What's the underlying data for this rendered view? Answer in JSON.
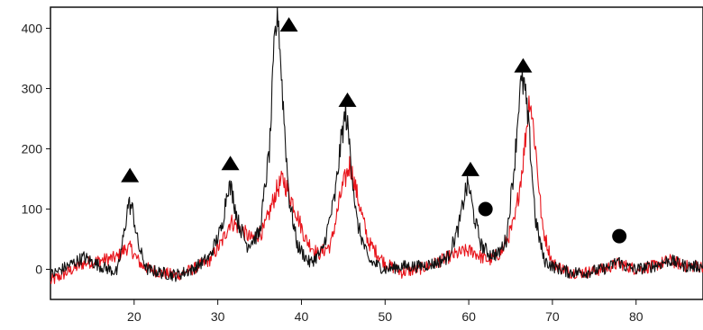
{
  "chart_data": {
    "type": "line",
    "title": "",
    "xlabel": "",
    "ylabel": "",
    "xlim": [
      10,
      88
    ],
    "ylim": [
      -50,
      435
    ],
    "x_ticks": [
      20,
      30,
      40,
      50,
      60,
      70,
      80
    ],
    "y_ticks": [
      0,
      100,
      200,
      300,
      400
    ],
    "grid": false,
    "legend": "none",
    "series": [
      {
        "color": "#e8141b",
        "x": [
          10,
          12,
          14,
          16,
          18,
          19,
          19.6,
          20.2,
          21,
          23,
          25,
          27,
          29,
          30.5,
          31.5,
          32.5,
          34,
          35.5,
          37,
          37.8,
          39,
          40.5,
          42,
          43.5,
          44.8,
          45.8,
          46.8,
          48,
          50,
          52,
          54,
          56,
          57.5,
          58.5,
          59.5,
          60.5,
          61.5,
          62.5,
          64,
          65.5,
          66.5,
          67.3,
          68,
          68.8,
          70,
          72,
          74,
          76,
          77,
          78,
          79,
          80,
          82,
          84,
          86,
          88
        ],
        "y": [
          -20,
          -5,
          10,
          15,
          20,
          35,
          35,
          20,
          5,
          -5,
          -10,
          0,
          15,
          45,
          80,
          70,
          50,
          65,
          130,
          150,
          110,
          50,
          25,
          40,
          130,
          175,
          115,
          45,
          10,
          -5,
          0,
          10,
          20,
          25,
          30,
          30,
          20,
          15,
          30,
          80,
          180,
          290,
          200,
          70,
          10,
          -5,
          -5,
          0,
          5,
          10,
          5,
          0,
          5,
          15,
          5,
          5
        ]
      },
      {
        "color": "#111111",
        "x": [
          10,
          12,
          14,
          16,
          18,
          18.8,
          19.3,
          19.8,
          20.5,
          21.5,
          23,
          25,
          27,
          29,
          30.5,
          31.2,
          31.7,
          32.4,
          33.5,
          35,
          36.2,
          36.8,
          37.2,
          37.7,
          38.5,
          39.5,
          41,
          42.5,
          44,
          44.8,
          45.3,
          45.8,
          46.6,
          48,
          50,
          52,
          54,
          56,
          57.5,
          58.8,
          59.6,
          60,
          60.6,
          61.5,
          62.5,
          63.5,
          64.5,
          65.5,
          66.1,
          66.6,
          67.2,
          68,
          69,
          70,
          72,
          74,
          76,
          77,
          77.8,
          78.6,
          80,
          82,
          84,
          86,
          88
        ],
        "y": [
          -10,
          5,
          20,
          5,
          -5,
          60,
          110,
          100,
          40,
          0,
          -5,
          -10,
          0,
          20,
          70,
          140,
          130,
          80,
          40,
          60,
          200,
          380,
          430,
          300,
          120,
          40,
          10,
          30,
          120,
          220,
          260,
          200,
          80,
          15,
          0,
          5,
          5,
          10,
          20,
          70,
          130,
          140,
          90,
          40,
          25,
          25,
          50,
          180,
          300,
          310,
          230,
          80,
          15,
          5,
          -5,
          -5,
          0,
          5,
          15,
          5,
          0,
          5,
          15,
          5,
          5
        ]
      }
    ],
    "annotations": [
      {
        "marker": "triangle",
        "x": 19.5,
        "y": 155
      },
      {
        "marker": "triangle",
        "x": 31.5,
        "y": 175
      },
      {
        "marker": "triangle",
        "x": 38.5,
        "y": 405
      },
      {
        "marker": "triangle",
        "x": 45.5,
        "y": 280
      },
      {
        "marker": "triangle",
        "x": 60.2,
        "y": 165
      },
      {
        "marker": "triangle",
        "x": 66.5,
        "y": 337
      },
      {
        "marker": "circle",
        "x": 62.0,
        "y": 100
      },
      {
        "marker": "circle",
        "x": 78.0,
        "y": 55
      }
    ]
  }
}
